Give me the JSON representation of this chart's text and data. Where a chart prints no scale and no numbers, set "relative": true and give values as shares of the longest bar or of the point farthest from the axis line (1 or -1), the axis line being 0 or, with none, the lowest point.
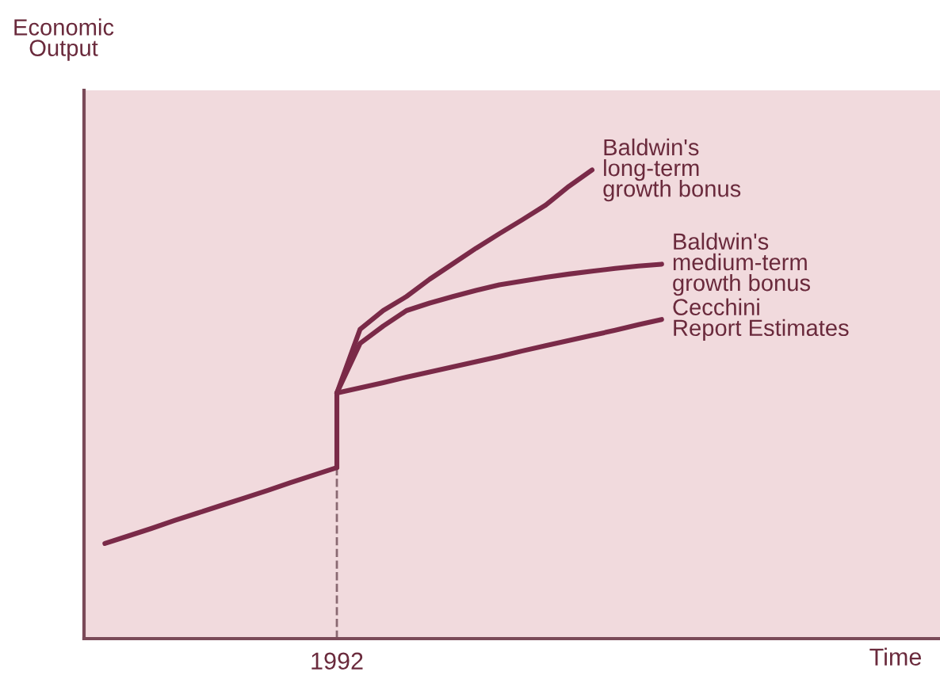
{
  "chart_data": {
    "type": "line",
    "relative": true,
    "ylabel": "Economic\nOutput",
    "categories": [
      null,
      null,
      null,
      null,
      null,
      null,
      null,
      null,
      null,
      null,
      null,
      null,
      null,
      null,
      null,
      null,
      null,
      null,
      null,
      null,
      null,
      null,
      null,
      null,
      null
    ],
    "legend": false,
    "marker": "none",
    "line_style": "solid",
    "annotations": [
      "1992",
      "Time"
    ],
    "series": [
      {
        "color": "#7a2a48",
        "values": [
          0.203,
          0.219,
          0.235,
          0.252,
          0.268,
          0.284,
          0.3,
          0.316,
          0.333,
          0.349,
          0.365,
          null,
          null,
          null,
          null,
          null,
          null,
          null,
          null,
          null,
          null,
          null,
          null,
          null,
          null
        ]
      },
      {
        "name": "Baldwin's\nlong-term\ngrowth bonus",
        "color": "#7a2a48",
        "values": [
          null,
          null,
          null,
          null,
          null,
          null,
          null,
          null,
          null,
          null,
          0.524,
          0.66,
          0.7,
          0.73,
          0.767,
          0.8,
          0.833,
          0.864,
          0.894,
          0.925,
          0.965,
          1.0,
          null,
          null,
          null
        ]
      },
      {
        "name": "Baldwin's\nmedium-term\ngrowth bonus",
        "color": "#7a2a48",
        "values": [
          null,
          null,
          null,
          null,
          null,
          null,
          null,
          null,
          null,
          null,
          0.524,
          0.63,
          0.667,
          0.7,
          0.716,
          0.73,
          0.743,
          0.755,
          0.763,
          0.771,
          0.778,
          0.784,
          0.79,
          0.795,
          0.799
        ]
      },
      {
        "name": "Cecchini\nReport Estimates",
        "color": "#7a2a48",
        "values": [
          null,
          null,
          null,
          null,
          null,
          null,
          null,
          null,
          null,
          null,
          0.524,
          0.535,
          0.546,
          0.558,
          0.569,
          0.58,
          0.591,
          0.602,
          0.614,
          0.625,
          0.636,
          0.647,
          0.658,
          0.67,
          0.681
        ]
      }
    ]
  }
}
